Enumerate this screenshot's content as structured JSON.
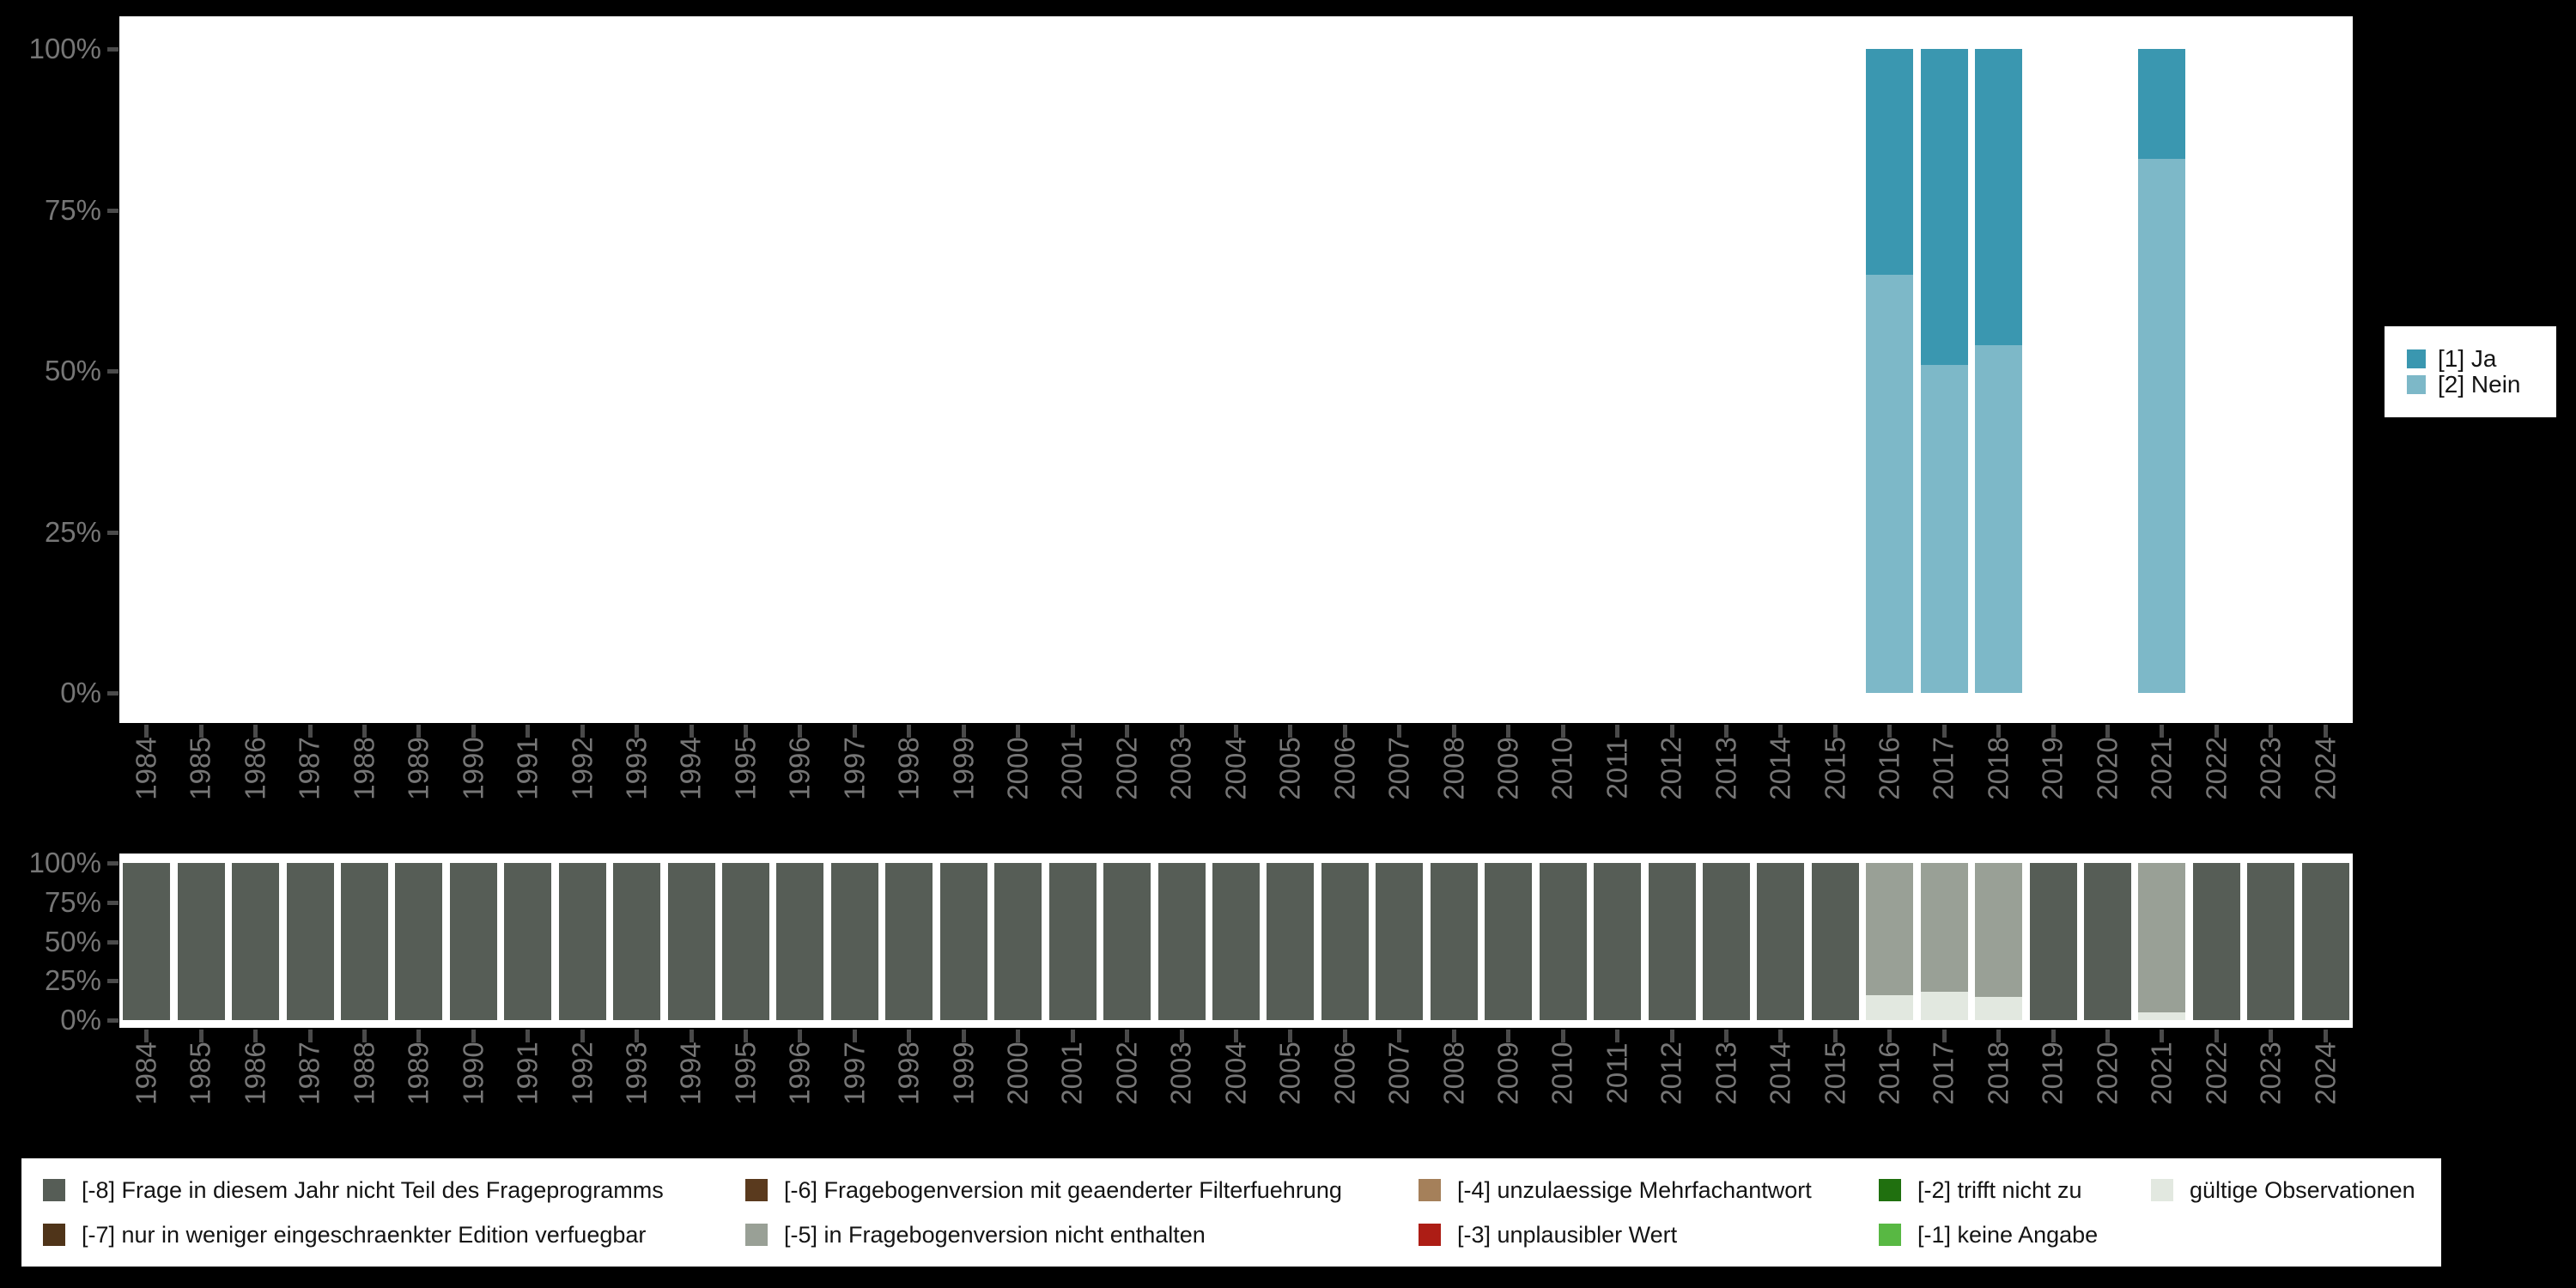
{
  "colors": {
    "background": "#000000",
    "plot_background": "#ffffff",
    "axis_text": "#767676",
    "tick": "#4a4a4a",
    "legend_text": "#141414",
    "ja": "#3a97b0",
    "nein": "#7db8c8",
    "minus8": "#565d56",
    "minus7": "#4f3419",
    "minus6": "#5a3a1e",
    "minus5": "#99a096",
    "minus4": "#a5805a",
    "minus3": "#ad1d15",
    "minus2": "#20700f",
    "minus1": "#58b843",
    "valid": "#e2e8e0"
  },
  "chart_data": [
    {
      "type": "bar",
      "stacked": true,
      "unit": "percent",
      "title": "",
      "xlabel": "",
      "ylabel": "",
      "ylim": [
        0,
        100
      ],
      "grid": false,
      "legend_position": "right",
      "y_ticks": [
        {
          "label": "100%",
          "value": 100
        },
        {
          "label": "75%",
          "value": 75
        },
        {
          "label": "50%",
          "value": 50
        },
        {
          "label": "25%",
          "value": 25
        },
        {
          "label": "0%",
          "value": 0
        }
      ],
      "categories": [
        1984,
        1985,
        1986,
        1987,
        1988,
        1989,
        1990,
        1991,
        1992,
        1993,
        1994,
        1995,
        1996,
        1997,
        1998,
        1999,
        2000,
        2001,
        2002,
        2003,
        2004,
        2005,
        2006,
        2007,
        2008,
        2009,
        2010,
        2011,
        2012,
        2013,
        2014,
        2015,
        2016,
        2017,
        2018,
        2019,
        2020,
        2021,
        2022,
        2023,
        2024
      ],
      "series": [
        {
          "name": "[1] Ja",
          "color": "#3a97b0",
          "values": [
            0,
            0,
            0,
            0,
            0,
            0,
            0,
            0,
            0,
            0,
            0,
            0,
            0,
            0,
            0,
            0,
            0,
            0,
            0,
            0,
            0,
            0,
            0,
            0,
            0,
            0,
            0,
            0,
            0,
            0,
            0,
            0,
            35,
            49,
            46,
            0,
            0,
            17,
            0,
            0,
            0
          ]
        },
        {
          "name": "[2] Nein",
          "color": "#7db8c8",
          "values": [
            0,
            0,
            0,
            0,
            0,
            0,
            0,
            0,
            0,
            0,
            0,
            0,
            0,
            0,
            0,
            0,
            0,
            0,
            0,
            0,
            0,
            0,
            0,
            0,
            0,
            0,
            0,
            0,
            0,
            0,
            0,
            0,
            65,
            51,
            54,
            0,
            0,
            83,
            0,
            0,
            0
          ]
        }
      ]
    },
    {
      "type": "bar",
      "stacked": true,
      "unit": "percent",
      "title": "",
      "xlabel": "",
      "ylabel": "",
      "ylim": [
        0,
        100
      ],
      "grid": false,
      "legend_position": "bottom",
      "y_ticks": [
        {
          "label": "100%",
          "value": 100
        },
        {
          "label": "75%",
          "value": 75
        },
        {
          "label": "50%",
          "value": 50
        },
        {
          "label": "25%",
          "value": 25
        },
        {
          "label": "0%",
          "value": 0
        }
      ],
      "categories": [
        1984,
        1985,
        1986,
        1987,
        1988,
        1989,
        1990,
        1991,
        1992,
        1993,
        1994,
        1995,
        1996,
        1997,
        1998,
        1999,
        2000,
        2001,
        2002,
        2003,
        2004,
        2005,
        2006,
        2007,
        2008,
        2009,
        2010,
        2011,
        2012,
        2013,
        2014,
        2015,
        2016,
        2017,
        2018,
        2019,
        2020,
        2021,
        2022,
        2023,
        2024
      ],
      "series": [
        {
          "name": "[-8] Frage in diesem Jahr nicht Teil des Frageprogramms",
          "color": "#565d56",
          "values": [
            100,
            100,
            100,
            100,
            100,
            100,
            100,
            100,
            100,
            100,
            100,
            100,
            100,
            100,
            100,
            100,
            100,
            100,
            100,
            100,
            100,
            100,
            100,
            100,
            100,
            100,
            100,
            100,
            100,
            100,
            100,
            100,
            0,
            0,
            0,
            100,
            100,
            0,
            100,
            100,
            100
          ]
        },
        {
          "name": "[-5] in Fragebogenversion nicht enthalten",
          "color": "#99a096",
          "values": [
            0,
            0,
            0,
            0,
            0,
            0,
            0,
            0,
            0,
            0,
            0,
            0,
            0,
            0,
            0,
            0,
            0,
            0,
            0,
            0,
            0,
            0,
            0,
            0,
            0,
            0,
            0,
            0,
            0,
            0,
            0,
            0,
            84,
            82,
            85,
            0,
            0,
            95,
            0,
            0,
            0
          ]
        },
        {
          "name": "gültige Observationen",
          "color": "#e2e8e0",
          "values": [
            0,
            0,
            0,
            0,
            0,
            0,
            0,
            0,
            0,
            0,
            0,
            0,
            0,
            0,
            0,
            0,
            0,
            0,
            0,
            0,
            0,
            0,
            0,
            0,
            0,
            0,
            0,
            0,
            0,
            0,
            0,
            0,
            16,
            18,
            15,
            0,
            0,
            5,
            0,
            0,
            0
          ]
        }
      ]
    }
  ],
  "answer_legend": {
    "entries": [
      {
        "label": "[1] Ja",
        "color": "#3a97b0"
      },
      {
        "label": "[2] Nein",
        "color": "#7db8c8"
      }
    ]
  },
  "missing_legend": {
    "columns": [
      {
        "entries": [
          {
            "label": "[-8] Frage in diesem Jahr nicht Teil des Frageprogramms",
            "color": "#565d56"
          },
          {
            "label": "[-7] nur in weniger eingeschraenkter Edition verfuegbar",
            "color": "#4f3419"
          }
        ]
      },
      {
        "entries": [
          {
            "label": "[-6] Fragebogenversion mit geaenderter Filterfuehrung",
            "color": "#5a3a1e"
          },
          {
            "label": "[-5] in Fragebogenversion nicht enthalten",
            "color": "#99a096"
          }
        ]
      },
      {
        "entries": [
          {
            "label": "[-4] unzulaessige Mehrfachantwort",
            "color": "#a5805a"
          },
          {
            "label": "[-3] unplausibler Wert",
            "color": "#ad1d15"
          }
        ]
      },
      {
        "entries": [
          {
            "label": "[-2] trifft nicht zu",
            "color": "#20700f"
          },
          {
            "label": "[-1] keine Angabe",
            "color": "#58b843"
          }
        ]
      },
      {
        "entries": [
          {
            "label": "gültige Observationen",
            "color": "#e2e8e0"
          }
        ]
      }
    ]
  }
}
